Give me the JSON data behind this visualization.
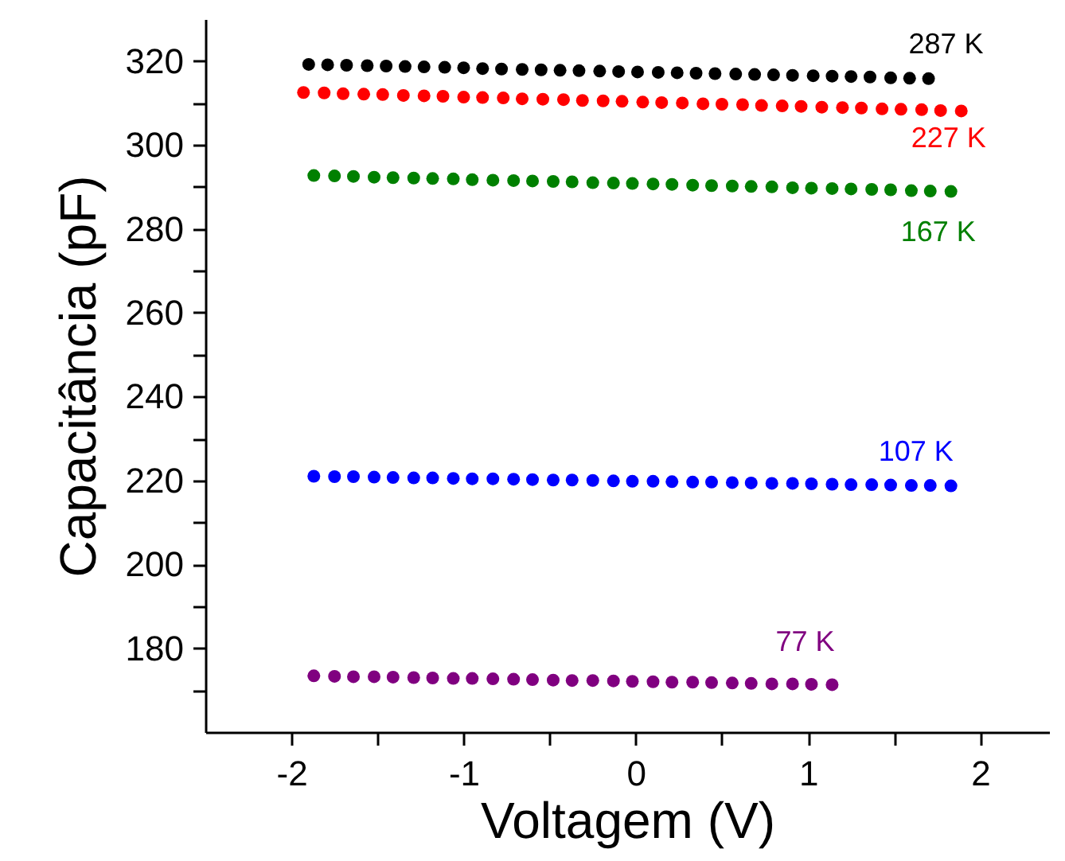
{
  "chart_data": {
    "type": "scatter",
    "xlabel": "Voltagem (V)",
    "ylabel": "Capacitância (pF)",
    "xlim": [
      -2.5,
      2.4
    ],
    "ylim": [
      160,
      330
    ],
    "xticks": [
      -2,
      -1,
      0,
      1,
      2,
      {
        "value": -1.5,
        "label": null
      },
      {
        "value": -0.5,
        "label": null
      },
      {
        "value": 0.5,
        "label": null
      },
      {
        "value": 1.5,
        "label": null
      }
    ],
    "yticks": [
      180,
      200,
      220,
      240,
      260,
      280,
      300,
      320,
      {
        "value": 170,
        "label": null
      },
      {
        "value": 190,
        "label": null
      },
      {
        "value": 210,
        "label": null
      },
      {
        "value": 230,
        "label": null
      },
      {
        "value": 250,
        "label": null
      },
      {
        "value": 270,
        "label": null
      },
      {
        "value": 290,
        "label": null
      },
      {
        "value": 310,
        "label": null
      }
    ],
    "grid": false,
    "marker": "circle",
    "series": [
      {
        "name": "287 K",
        "color": "#000000",
        "x": [
          -1.9,
          -1.79,
          -1.68,
          -1.56,
          -1.45,
          -1.34,
          -1.23,
          -1.11,
          -1.0,
          -0.89,
          -0.78,
          -0.66,
          -0.55,
          -0.44,
          -0.33,
          -0.21,
          -0.1,
          0.01,
          0.13,
          0.24,
          0.35,
          0.46,
          0.58,
          0.69,
          0.8,
          0.91,
          1.03,
          1.14,
          1.25,
          1.36,
          1.48,
          1.59,
          1.7
        ],
        "values": [
          319.2,
          319.1,
          319.0,
          318.9,
          318.8,
          318.7,
          318.6,
          318.5,
          318.4,
          318.2,
          318.1,
          318.0,
          317.9,
          317.8,
          317.7,
          317.6,
          317.5,
          317.4,
          317.3,
          317.2,
          317.1,
          317.0,
          316.9,
          316.8,
          316.7,
          316.6,
          316.5,
          316.4,
          316.3,
          316.2,
          316.0,
          315.9,
          315.8
        ]
      },
      {
        "name": "227 K",
        "color": "#ff0000",
        "x": [
          -1.93,
          -1.81,
          -1.7,
          -1.58,
          -1.47,
          -1.35,
          -1.23,
          -1.12,
          -1.0,
          -0.89,
          -0.77,
          -0.66,
          -0.54,
          -0.42,
          -0.31,
          -0.19,
          -0.08,
          0.04,
          0.15,
          0.27,
          0.39,
          0.5,
          0.62,
          0.73,
          0.85,
          0.96,
          1.08,
          1.2,
          1.31,
          1.43,
          1.54,
          1.66,
          1.77,
          1.89
        ],
        "values": [
          312.5,
          312.4,
          312.2,
          312.1,
          312.0,
          311.8,
          311.7,
          311.6,
          311.4,
          311.3,
          311.2,
          311.0,
          310.9,
          310.8,
          310.6,
          310.5,
          310.4,
          310.2,
          310.1,
          310.0,
          309.8,
          309.7,
          309.6,
          309.4,
          309.3,
          309.2,
          309.0,
          308.9,
          308.8,
          308.6,
          308.5,
          308.4,
          308.2,
          308.1
        ]
      },
      {
        "name": "167 K",
        "color": "#008000",
        "x": [
          -1.87,
          -1.75,
          -1.64,
          -1.52,
          -1.41,
          -1.29,
          -1.18,
          -1.06,
          -0.95,
          -0.83,
          -0.71,
          -0.6,
          -0.48,
          -0.37,
          -0.25,
          -0.13,
          -0.02,
          0.1,
          0.21,
          0.33,
          0.44,
          0.56,
          0.67,
          0.79,
          0.91,
          1.02,
          1.14,
          1.25,
          1.37,
          1.48,
          1.6,
          1.71,
          1.83
        ],
        "values": [
          292.7,
          292.6,
          292.5,
          292.3,
          292.2,
          292.1,
          292.0,
          291.9,
          291.7,
          291.6,
          291.5,
          291.4,
          291.3,
          291.2,
          291.0,
          290.9,
          290.8,
          290.7,
          290.6,
          290.4,
          290.3,
          290.2,
          290.1,
          290.0,
          289.8,
          289.7,
          289.6,
          289.5,
          289.4,
          289.3,
          289.1,
          289.0,
          288.9
        ]
      },
      {
        "name": "107 K",
        "color": "#0000ff",
        "x": [
          -1.87,
          -1.75,
          -1.64,
          -1.52,
          -1.41,
          -1.29,
          -1.18,
          -1.06,
          -0.95,
          -0.83,
          -0.71,
          -0.6,
          -0.48,
          -0.37,
          -0.25,
          -0.13,
          -0.02,
          0.1,
          0.21,
          0.33,
          0.44,
          0.56,
          0.67,
          0.79,
          0.91,
          1.02,
          1.14,
          1.25,
          1.37,
          1.48,
          1.6,
          1.71,
          1.83
        ],
        "values": [
          221.0,
          220.9,
          220.9,
          220.8,
          220.7,
          220.6,
          220.6,
          220.5,
          220.4,
          220.4,
          220.3,
          220.2,
          220.1,
          220.1,
          220.0,
          219.9,
          219.8,
          219.8,
          219.7,
          219.6,
          219.6,
          219.5,
          219.4,
          219.3,
          219.3,
          219.2,
          219.1,
          219.0,
          219.0,
          218.9,
          218.8,
          218.8,
          218.7
        ]
      },
      {
        "name": "77 K",
        "color": "#800080",
        "x": [
          -1.87,
          -1.75,
          -1.64,
          -1.52,
          -1.41,
          -1.29,
          -1.18,
          -1.06,
          -0.95,
          -0.83,
          -0.71,
          -0.6,
          -0.48,
          -0.37,
          -0.25,
          -0.13,
          -0.02,
          0.1,
          0.21,
          0.33,
          0.44,
          0.56,
          0.67,
          0.79,
          0.91,
          1.02,
          1.14
        ],
        "values": [
          173.4,
          173.3,
          173.2,
          173.2,
          173.1,
          173.0,
          172.9,
          172.8,
          172.8,
          172.7,
          172.6,
          172.5,
          172.4,
          172.3,
          172.3,
          172.2,
          172.1,
          172.0,
          171.9,
          171.9,
          171.8,
          171.7,
          171.6,
          171.5,
          171.5,
          171.4,
          171.3
        ]
      }
    ]
  }
}
